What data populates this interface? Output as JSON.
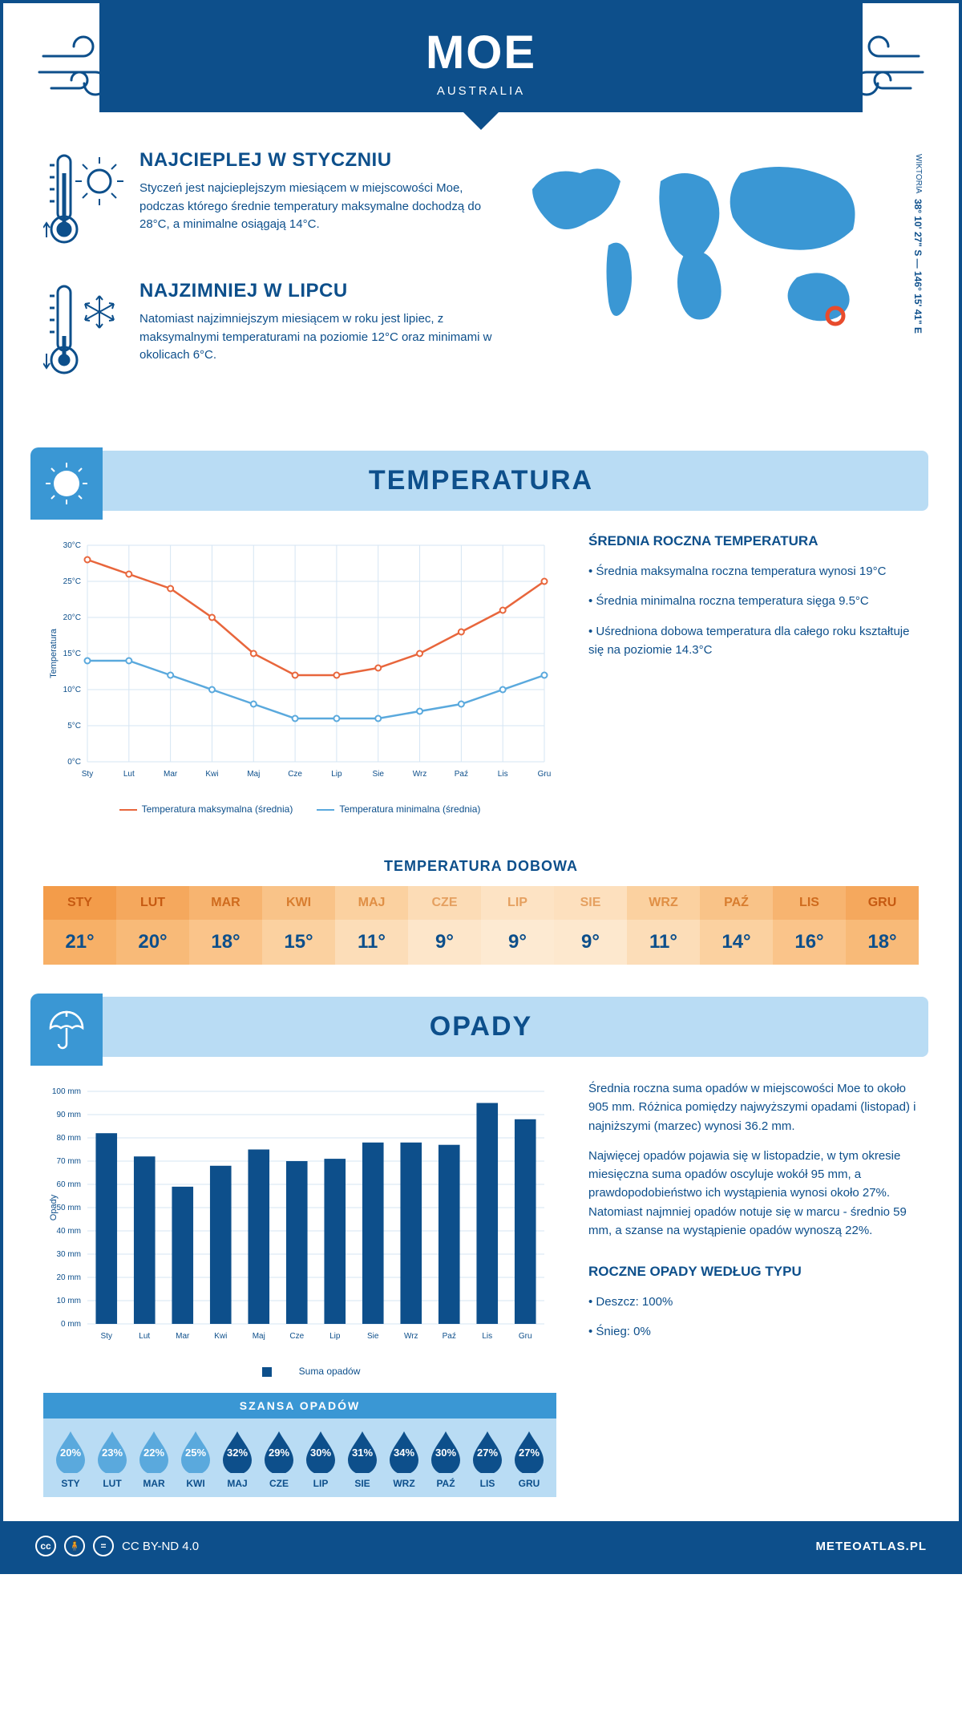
{
  "header": {
    "city": "MOE",
    "country": "AUSTRALIA"
  },
  "coords": {
    "lat": "38° 10' 27\" S",
    "lon": "146° 15' 41\" E",
    "region": "WIKTORIA"
  },
  "facts": {
    "warm": {
      "title": "NAJCIEPLEJ W STYCZNIU",
      "text": "Styczeń jest najcieplejszym miesiącem w miejscowości Moe, podczas którego średnie temperatury maksymalne dochodzą do 28°C, a minimalne osiągają 14°C."
    },
    "cold": {
      "title": "NAJZIMNIEJ W LIPCU",
      "text": "Natomiast najzimniejszym miesiącem w roku jest lipiec, z maksymalnymi temperaturami na poziomie 12°C oraz minimami w okolicach 6°C."
    }
  },
  "sections": {
    "temp": "TEMPERATURA",
    "rain": "OPADY"
  },
  "months": [
    "Sty",
    "Lut",
    "Mar",
    "Kwi",
    "Maj",
    "Cze",
    "Lip",
    "Sie",
    "Wrz",
    "Paź",
    "Lis",
    "Gru"
  ],
  "months_upper": [
    "STY",
    "LUT",
    "MAR",
    "KWI",
    "MAJ",
    "CZE",
    "LIP",
    "SIE",
    "WRZ",
    "PAŹ",
    "LIS",
    "GRU"
  ],
  "temp_chart": {
    "ylabel": "Temperatura",
    "ylim": [
      0,
      30
    ],
    "ytick_step": 5,
    "max_series": [
      28,
      26,
      24,
      20,
      15,
      12,
      12,
      13,
      15,
      18,
      21,
      25
    ],
    "min_series": [
      14,
      14,
      12,
      10,
      8,
      6,
      6,
      6,
      7,
      8,
      10,
      12
    ],
    "max_color": "#e8663c",
    "min_color": "#5aa9dd",
    "grid_color": "#d5e5f3",
    "legend_max": "Temperatura maksymalna (średnia)",
    "legend_min": "Temperatura minimalna (średnia)"
  },
  "temp_side": {
    "title": "ŚREDNIA ROCZNA TEMPERATURA",
    "b1": "• Średnia maksymalna roczna temperatura wynosi 19°C",
    "b2": "• Średnia minimalna roczna temperatura sięga 9.5°C",
    "b3": "• Uśredniona dobowa temperatura dla całego roku kształtuje się na poziomie 14.3°C"
  },
  "daily": {
    "title": "TEMPERATURA DOBOWA",
    "values": [
      "21°",
      "20°",
      "18°",
      "15°",
      "11°",
      "9°",
      "9°",
      "9°",
      "11°",
      "14°",
      "16°",
      "18°"
    ],
    "head_colors": [
      "#f39c4a",
      "#f5a85d",
      "#f7b470",
      "#f9c388",
      "#fbd1a0",
      "#fcdcb6",
      "#fde3c4",
      "#fde0be",
      "#fbd1a0",
      "#f9c388",
      "#f7b470",
      "#f5a85d"
    ],
    "head_text_colors": [
      "#c65a12",
      "#c65a12",
      "#cf6b1e",
      "#d87d2f",
      "#e08f45",
      "#e5a060",
      "#e5a060",
      "#e5a060",
      "#e08f45",
      "#d87d2f",
      "#cf6b1e",
      "#c65a12"
    ],
    "val_colors": [
      "#f7b067",
      "#f8ba78",
      "#fac48a",
      "#fbd1a0",
      "#fcddb8",
      "#fde6ca",
      "#fdead2",
      "#fde8ce",
      "#fcddb8",
      "#fbd1a0",
      "#fac48a",
      "#f8ba78"
    ]
  },
  "rain_chart": {
    "ylabel": "Opady",
    "ylim": [
      0,
      100
    ],
    "ytick_step": 10,
    "values": [
      82,
      72,
      59,
      68,
      75,
      70,
      71,
      78,
      78,
      77,
      95,
      88
    ],
    "bar_color": "#0d4f8b",
    "legend": "Suma opadów"
  },
  "rain_side": {
    "p1": "Średnia roczna suma opadów w miejscowości Moe to około 905 mm. Różnica pomiędzy najwyższymi opadami (listopad) i najniższymi (marzec) wynosi 36.2 mm.",
    "p2": "Najwięcej opadów pojawia się w listopadzie, w tym okresie miesięczna suma opadów oscyluje wokół 95 mm, a prawdopodobieństwo ich wystąpienia wynosi około 27%. Natomiast najmniej opadów notuje się w marcu - średnio 59 mm, a szanse na wystąpienie opadów wynoszą 22%.",
    "type_title": "ROCZNE OPADY WEDŁUG TYPU",
    "type_b1": "• Deszcz: 100%",
    "type_b2": "• Śnieg: 0%"
  },
  "rain_chance": {
    "title": "SZANSA OPADÓW",
    "values": [
      "20%",
      "23%",
      "22%",
      "25%",
      "32%",
      "29%",
      "30%",
      "31%",
      "34%",
      "30%",
      "27%",
      "27%"
    ],
    "colors": [
      "#5aa9dd",
      "#5aa9dd",
      "#5aa9dd",
      "#5aa9dd",
      "#0d4f8b",
      "#0d4f8b",
      "#0d4f8b",
      "#0d4f8b",
      "#0d4f8b",
      "#0d4f8b",
      "#0d4f8b",
      "#0d4f8b"
    ]
  },
  "footer": {
    "license": "CC BY-ND 4.0",
    "site": "METEOATLAS.PL"
  }
}
